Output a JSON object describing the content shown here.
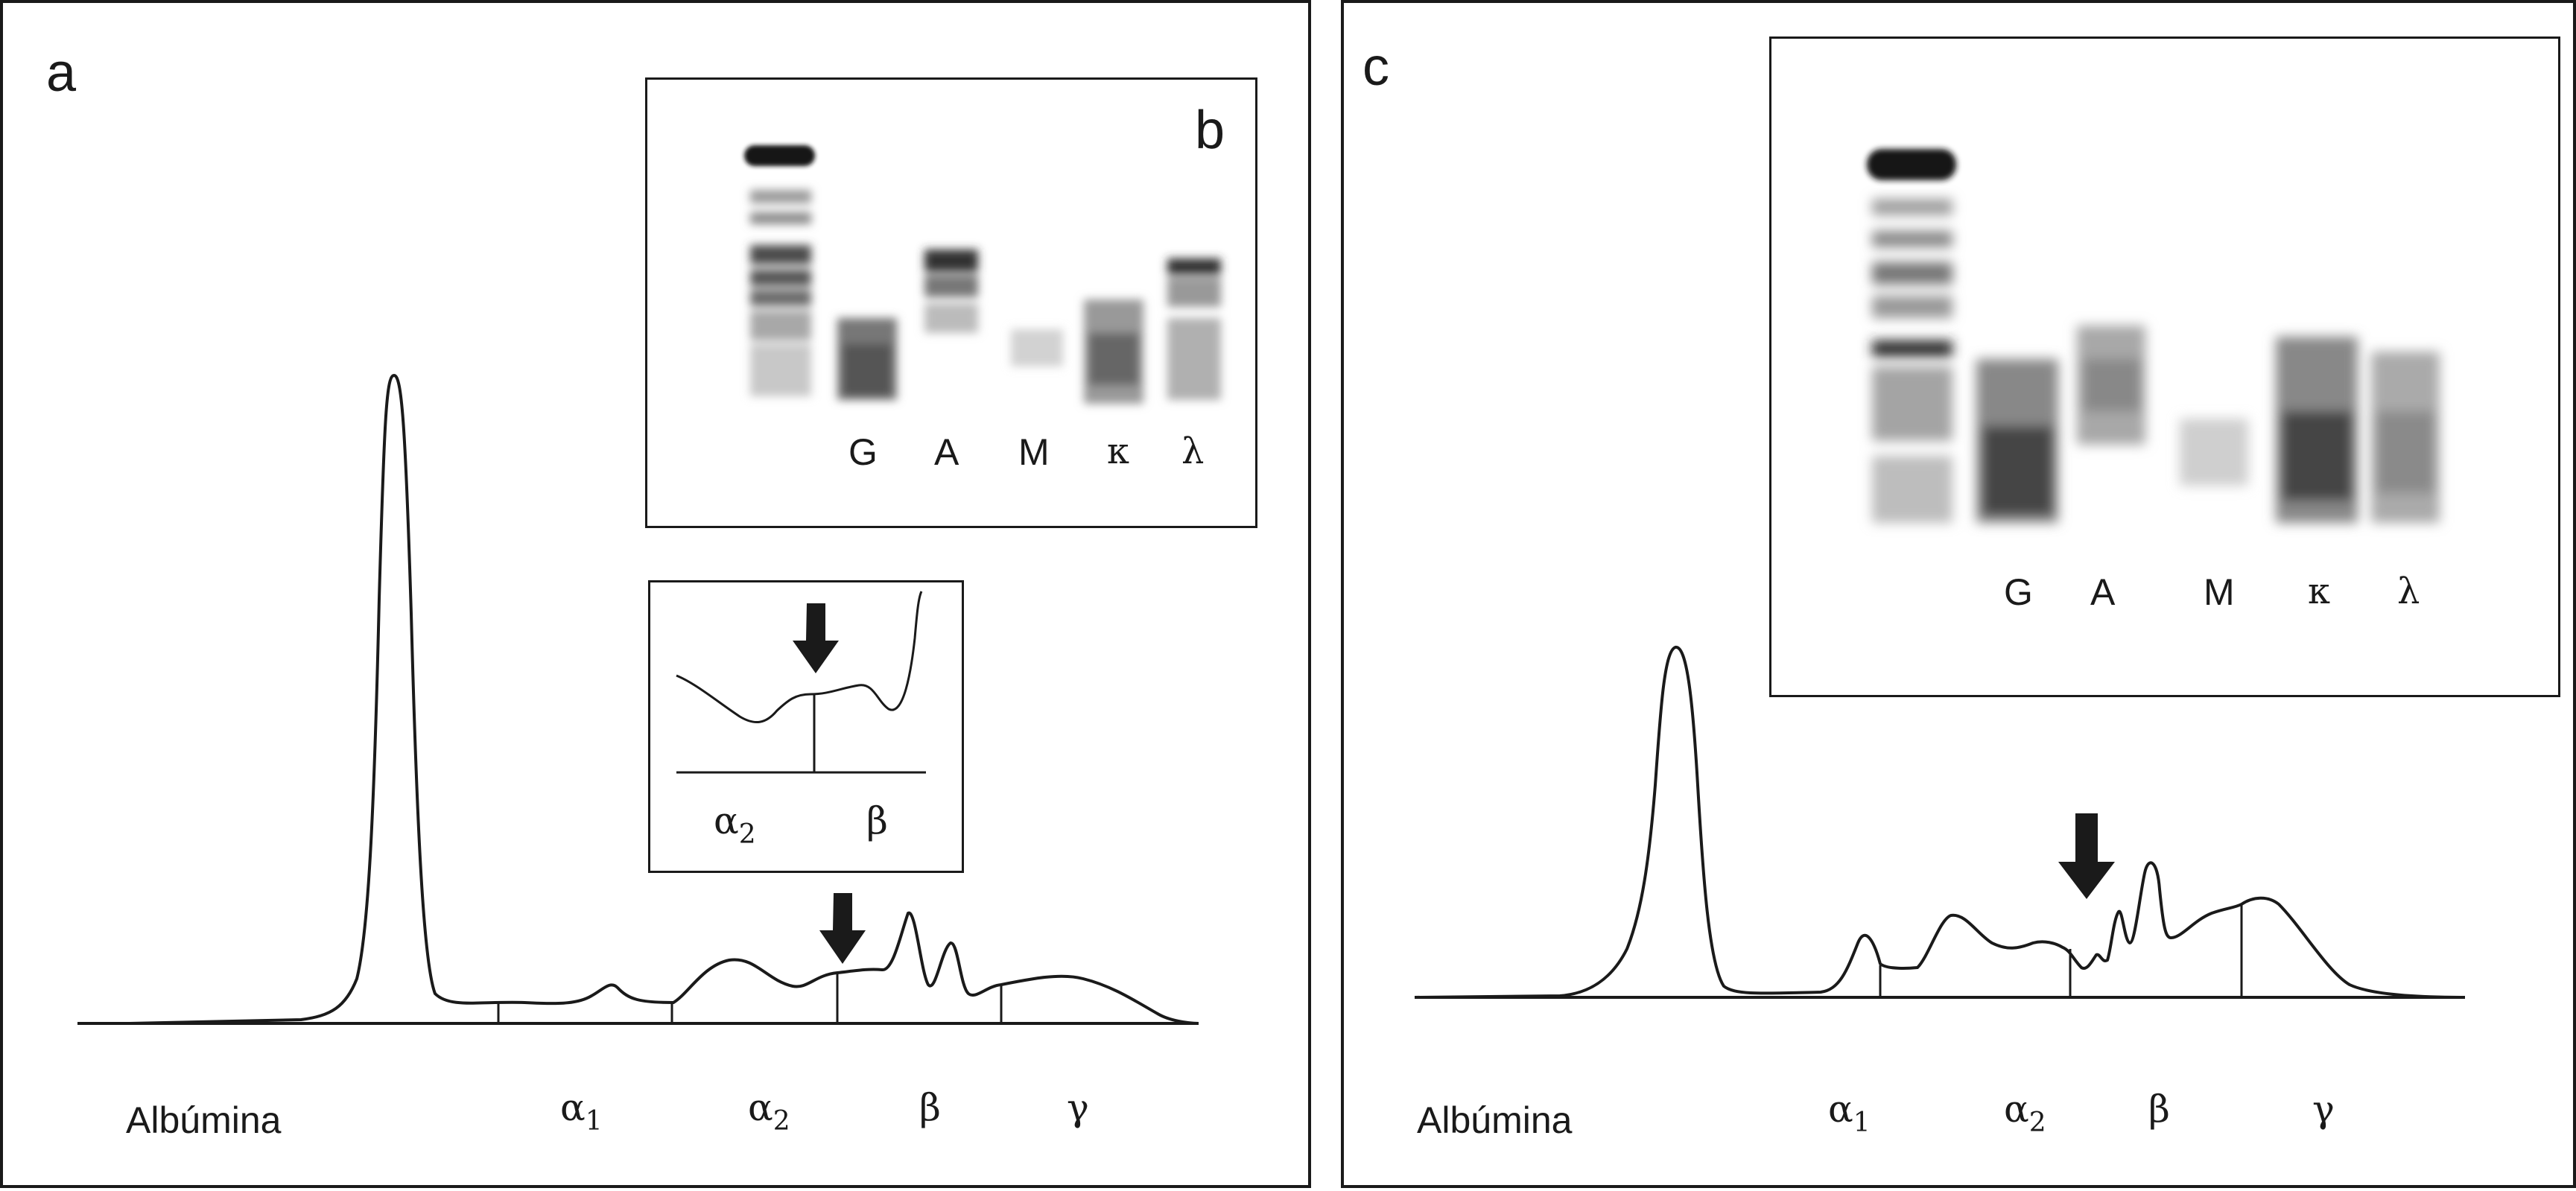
{
  "panels": {
    "a": {
      "letter": "a",
      "albumin_label": "Albúmina",
      "fractions": [
        {
          "sym": "α",
          "sub": "1"
        },
        {
          "sym": "α",
          "sub": "2"
        },
        {
          "sym": "β",
          "sub": ""
        },
        {
          "sym": "γ",
          "sub": ""
        }
      ],
      "zoom_inset": {
        "labels": [
          {
            "sym": "α",
            "sub": "2"
          },
          {
            "sym": "β",
            "sub": ""
          }
        ]
      }
    },
    "b": {
      "letter": "b",
      "lanes": [
        "G",
        "A",
        "M",
        "κ",
        "λ"
      ]
    },
    "c": {
      "letter": "c",
      "albumin_label": "Albúmina",
      "fractions": [
        {
          "sym": "α",
          "sub": "1"
        },
        {
          "sym": "α",
          "sub": "2"
        },
        {
          "sym": "β",
          "sub": ""
        },
        {
          "sym": "γ",
          "sub": ""
        }
      ],
      "lanes": [
        "G",
        "A",
        "M",
        "κ",
        "λ"
      ]
    }
  },
  "colors": {
    "line": "#1a1a1a",
    "band_dark": "#2a2a2a",
    "band_mid": "#6e6e6e",
    "band_light": "#bdbdbd"
  }
}
